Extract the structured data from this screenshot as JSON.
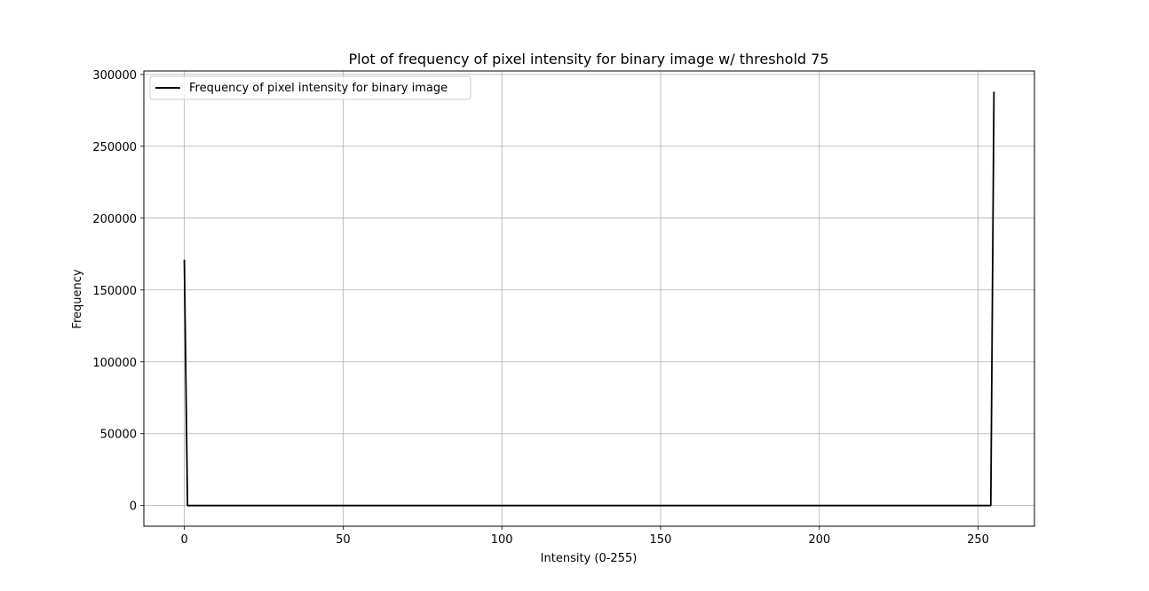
{
  "chart_data": {
    "type": "line",
    "title": "Plot of frequency of pixel intensity for binary image w/ threshold 75",
    "xlabel": "Intensity (0-255)",
    "ylabel": "Frequency",
    "xlim": [
      -12.75,
      267.75
    ],
    "ylim": [
      -14400,
      302400
    ],
    "xticks": [
      0,
      50,
      100,
      150,
      200,
      250
    ],
    "yticks": [
      0,
      50000,
      100000,
      150000,
      200000,
      250000,
      300000
    ],
    "grid": true,
    "legend_position": "top-left",
    "series": [
      {
        "name": "Frequency of pixel intensity for binary image",
        "color": "#000000",
        "x": [
          0,
          1,
          254,
          255
        ],
        "y": [
          171000,
          0,
          0,
          288000
        ]
      }
    ]
  }
}
